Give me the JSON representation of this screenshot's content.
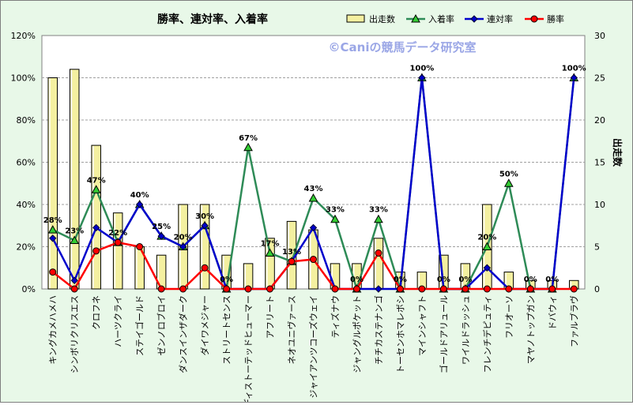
{
  "chart_data": {
    "type": "bar",
    "title": "勝率、連対率、入着率",
    "watermark": "©Caniの競馬データ研究室",
    "ylabel_right": "出走数",
    "categories": [
      "キングカメハメハ",
      "シンボリクリスエス",
      "クロフネ",
      "ハーツクライ",
      "ステイゴールド",
      "ゼンノロブロイ",
      "ダンスインザダーク",
      "ダイワメジャー",
      "ストリートセンス",
      "ディストーテッドヒューマー",
      "アフリート",
      "ネオユニヴァース",
      "ジャイアンツコーズウェイ",
      "ティズナウ",
      "ジャングルポケット",
      "チチカステナンゴ",
      "トーセンホマレボシ",
      "マインシャフト",
      "ゴールドアリュール",
      "ワイルドラッシュ",
      "フレンチデピュティ",
      "フリオーソ",
      "マヤノトップガン",
      "ドバウィ",
      "ファルブラヴ"
    ],
    "left_ylim": [
      0,
      120
    ],
    "left_ticks": [
      "0%",
      "20%",
      "40%",
      "60%",
      "80%",
      "100%",
      "120%"
    ],
    "right_ylim": [
      0,
      30
    ],
    "right_ticks": [
      "0",
      "5",
      "10",
      "15",
      "20",
      "25",
      "30"
    ],
    "legend_position": "top-right",
    "colors": {
      "bar_fill": "#f4f0a0",
      "bar_stroke": "#000000",
      "entry_line": "#2e8b57",
      "entry_marker": "#33cc33",
      "rentai_line": "#0000cc",
      "win_line": "#ff0000",
      "plot_bg": "#ffffff",
      "grid": "#a0a0a0",
      "watermark": "#9aa6e6"
    },
    "series": [
      {
        "key": "starts",
        "name": "出走数",
        "axis": "right",
        "kind": "bar",
        "values": [
          25,
          26,
          17,
          9,
          5,
          4,
          10,
          10,
          4,
          3,
          6,
          8,
          7,
          3,
          3,
          6,
          2,
          2,
          4,
          3,
          10,
          2,
          1,
          1,
          1
        ]
      },
      {
        "key": "entry",
        "name": "入着率",
        "axis": "left",
        "kind": "line",
        "values": [
          28,
          23,
          47,
          22,
          40,
          25,
          20,
          30,
          0,
          67,
          17,
          13,
          43,
          33,
          0,
          33,
          0,
          100,
          0,
          0,
          20,
          50,
          0,
          0,
          100
        ]
      },
      {
        "key": "rentai",
        "name": "連対率",
        "axis": "left",
        "kind": "line",
        "values": [
          24,
          4,
          29,
          22,
          40,
          25,
          20,
          30,
          0,
          0,
          0,
          13,
          29,
          0,
          0,
          0,
          0,
          100,
          0,
          0,
          10,
          0,
          0,
          0,
          100
        ]
      },
      {
        "key": "win",
        "name": "勝率",
        "axis": "left",
        "kind": "line",
        "values": [
          8,
          0,
          18,
          22,
          20,
          0,
          0,
          10,
          0,
          0,
          0,
          13,
          14,
          0,
          0,
          17,
          0,
          0,
          0,
          0,
          0,
          0,
          0,
          0,
          0
        ]
      }
    ],
    "data_labels": [
      {
        "index": 0,
        "series": "entry",
        "text": "28%"
      },
      {
        "index": 1,
        "series": "entry",
        "text": "23%"
      },
      {
        "index": 2,
        "series": "entry",
        "text": "47%"
      },
      {
        "index": 3,
        "series": "entry",
        "text": "22%"
      },
      {
        "index": 4,
        "series": "entry",
        "text": "40%"
      },
      {
        "index": 5,
        "series": "entry",
        "text": "25%"
      },
      {
        "index": 6,
        "series": "entry",
        "text": "20%"
      },
      {
        "index": 7,
        "series": "entry",
        "text": "30%"
      },
      {
        "index": 8,
        "series": "entry",
        "text": "0%"
      },
      {
        "index": 9,
        "series": "entry",
        "text": "67%"
      },
      {
        "index": 10,
        "series": "entry",
        "text": "17%"
      },
      {
        "index": 11,
        "series": "entry",
        "text": "13%"
      },
      {
        "index": 12,
        "series": "entry",
        "text": "43%"
      },
      {
        "index": 13,
        "series": "entry",
        "text": "33%"
      },
      {
        "index": 14,
        "series": "entry",
        "text": "0%"
      },
      {
        "index": 15,
        "series": "entry",
        "text": "33%"
      },
      {
        "index": 16,
        "series": "entry",
        "text": "0%"
      },
      {
        "index": 17,
        "series": "entry",
        "text": "100%"
      },
      {
        "index": 18,
        "series": "entry",
        "text": "0%"
      },
      {
        "index": 19,
        "series": "entry",
        "text": "0%"
      },
      {
        "index": 20,
        "series": "entry",
        "text": "20%"
      },
      {
        "index": 21,
        "series": "entry",
        "text": "50%"
      },
      {
        "index": 22,
        "series": "entry",
        "text": "0%"
      },
      {
        "index": 23,
        "series": "entry",
        "text": "0%"
      },
      {
        "index": 24,
        "series": "entry",
        "text": "100%"
      }
    ]
  }
}
